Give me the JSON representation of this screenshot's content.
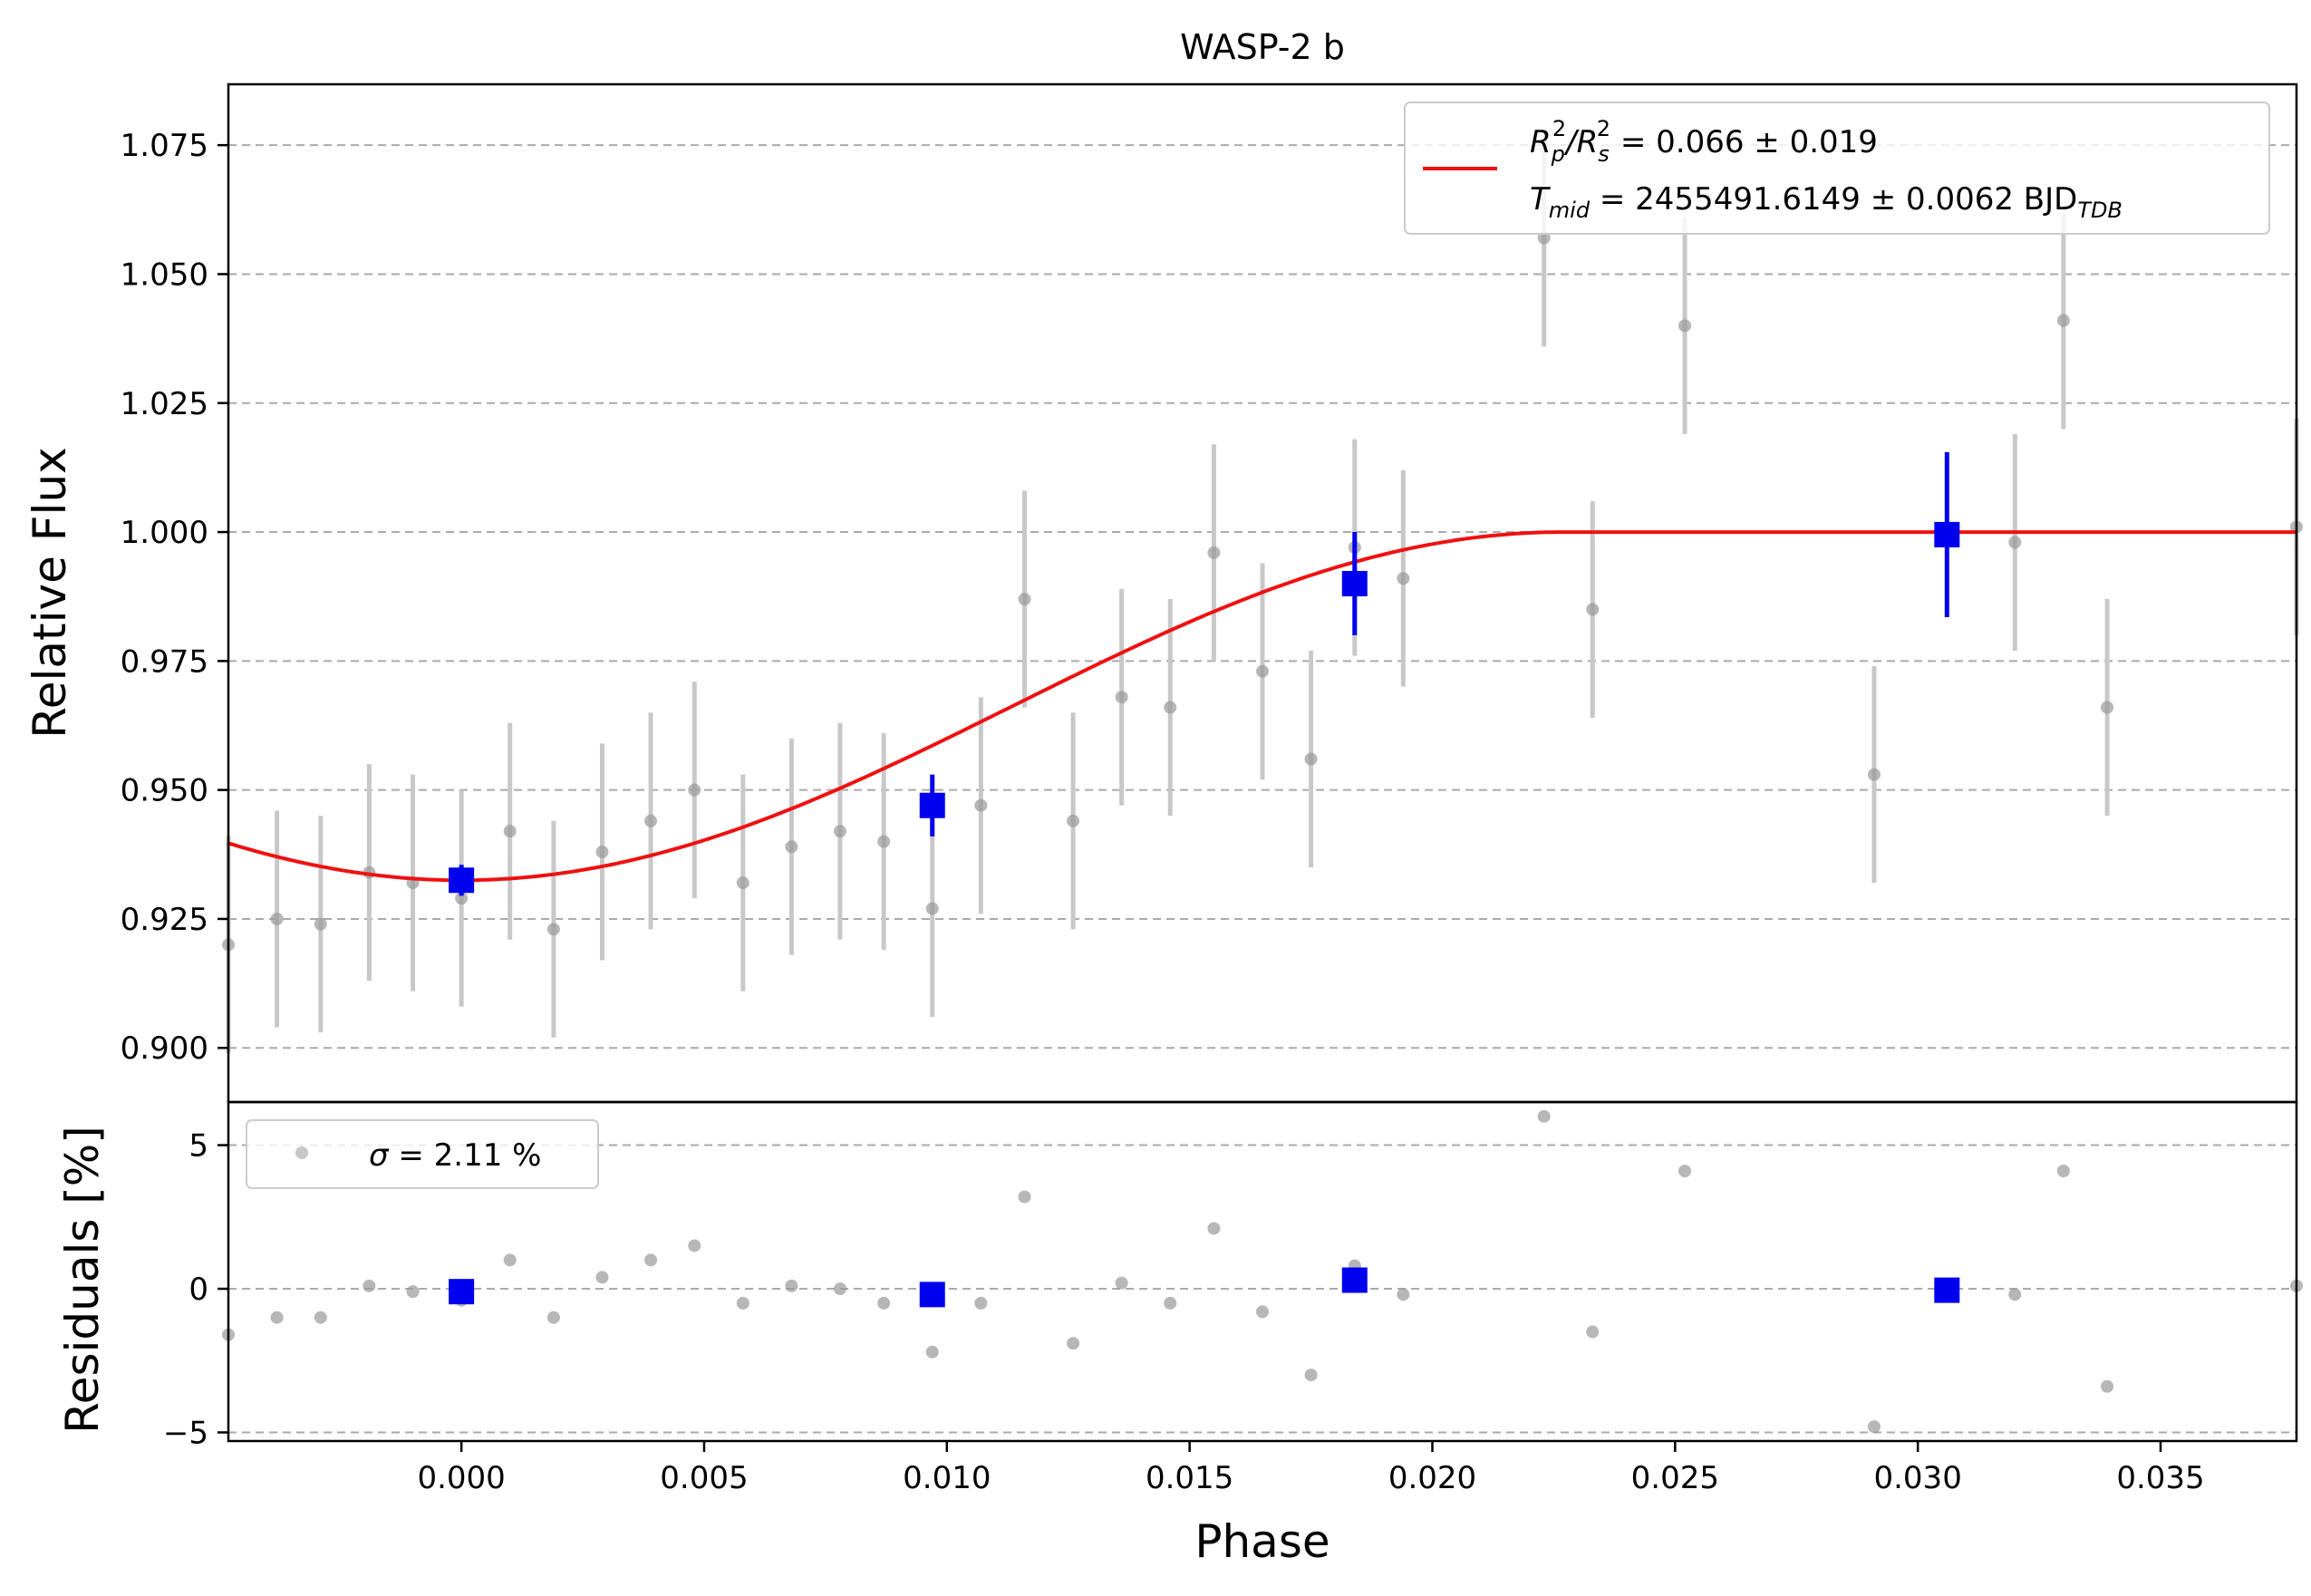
{
  "chart_data": [
    {
      "type": "scatter",
      "title": "WASP-2 b",
      "xlabel": "",
      "ylabel": "Relative Flux",
      "xlim": [
        -0.0048,
        0.0378
      ],
      "ylim": [
        0.8895,
        1.0868
      ],
      "yticks": [
        0.9,
        0.925,
        0.95,
        0.975,
        1.0,
        1.025,
        1.05,
        1.075
      ],
      "ytick_labels": [
        "0.900",
        "0.925",
        "0.950",
        "0.975",
        "1.000",
        "1.025",
        "1.050",
        "1.075"
      ],
      "grid": "horizontal dashed",
      "legend_position": "top-right",
      "legend": {
        "line1_main": "R",
        "line1_sub1": "p",
        "line1_sup1": "2",
        "line1_sep": "/R",
        "line1_sub2": "s",
        "line1_sup2": "2",
        "line1_value": " = 0.066 ± 0.019",
        "line2_main": "T",
        "line2_sub": "mid",
        "line2_value": " = 2455491.6149 ± 0.0062 BJD",
        "line2_unit_sub": "TDB"
      },
      "colors": {
        "model": "#ee1111",
        "data": "#999999",
        "binned": "#0000ee",
        "errorbar": "#c8c8c8"
      },
      "model": {
        "baseline": 1.0,
        "depth": 0.0675,
        "t_mid": 0.0,
        "transit_end": 0.0227,
        "description_of_shape": "red model curve"
      },
      "series": [
        {
          "kind": "data",
          "x": [
            -0.0048,
            -0.0038,
            -0.0029,
            -0.0019,
            -0.001,
            0.0,
            0.001,
            0.0019,
            0.0029,
            0.0039,
            0.0048,
            0.0058,
            0.0068,
            0.0078,
            0.0087,
            0.0097,
            0.0107,
            0.0116,
            0.0126,
            0.0136,
            0.0146,
            0.0155,
            0.0165,
            0.0175,
            0.0184,
            0.0194,
            0.0223,
            0.0233,
            0.0252,
            0.0291,
            0.032,
            0.033,
            0.0339,
            0.0378
          ],
          "y": [
            0.92,
            0.925,
            0.924,
            0.934,
            0.932,
            0.929,
            0.942,
            0.923,
            0.938,
            0.944,
            0.95,
            0.932,
            0.939,
            0.942,
            0.94,
            0.927,
            0.947,
            0.987,
            0.944,
            0.968,
            0.966,
            0.996,
            0.973,
            0.956,
            0.997,
            0.991,
            1.057,
            0.985,
            1.04,
            0.953,
            0.998,
            1.041,
            0.966,
            1.001
          ],
          "yerr": 0.021
        },
        {
          "kind": "binned",
          "x": [
            0.0,
            0.0097,
            0.0184,
            0.0306
          ],
          "y": [
            0.9325,
            0.947,
            0.99,
            0.9995
          ],
          "yerr": [
            0.003,
            0.006,
            0.01,
            0.016
          ]
        }
      ]
    },
    {
      "type": "scatter",
      "title": "",
      "xlabel": "Phase",
      "ylabel": "Residuals [%]",
      "xlim": [
        -0.0048,
        0.0378
      ],
      "ylim": [
        -5.3,
        6.5
      ],
      "xticks": [
        0.0,
        0.005,
        0.01,
        0.015,
        0.02,
        0.025,
        0.03,
        0.035
      ],
      "xtick_labels": [
        "0.000",
        "0.005",
        "0.010",
        "0.015",
        "0.020",
        "0.025",
        "0.030",
        "0.035"
      ],
      "yticks": [
        -5,
        0,
        5
      ],
      "ytick_labels": [
        "−5",
        "0",
        "5"
      ],
      "grid": "horizontal dashed",
      "legend_position": "top-left",
      "legend": {
        "sigma_symbol": "σ",
        "sigma_value": " = 2.11 %"
      },
      "series": [
        {
          "kind": "data",
          "x": [
            -0.0048,
            -0.0038,
            -0.0029,
            -0.0019,
            -0.001,
            0.0,
            0.001,
            0.0019,
            0.0029,
            0.0039,
            0.0048,
            0.0058,
            0.0068,
            0.0078,
            0.0087,
            0.0097,
            0.0107,
            0.0116,
            0.0126,
            0.0136,
            0.0146,
            0.0155,
            0.0165,
            0.0175,
            0.0184,
            0.0194,
            0.0223,
            0.0233,
            0.0252,
            0.0291,
            0.032,
            0.033,
            0.0339,
            0.0378
          ],
          "y": [
            -1.6,
            -1.0,
            -1.0,
            0.1,
            -0.1,
            -0.4,
            1.0,
            -1.0,
            0.4,
            1.0,
            1.5,
            -0.5,
            0.1,
            0.0,
            -0.5,
            -2.2,
            -0.5,
            3.2,
            -1.9,
            0.2,
            -0.5,
            2.1,
            -0.8,
            -3.0,
            0.8,
            -0.2,
            6.0,
            -1.5,
            4.1,
            -4.8,
            -0.2,
            4.1,
            -3.4,
            0.1
          ]
        },
        {
          "kind": "binned",
          "x": [
            0.0,
            0.0097,
            0.0184,
            0.0306
          ],
          "y": [
            -0.1,
            -0.2,
            0.3,
            -0.05
          ]
        }
      ]
    }
  ]
}
